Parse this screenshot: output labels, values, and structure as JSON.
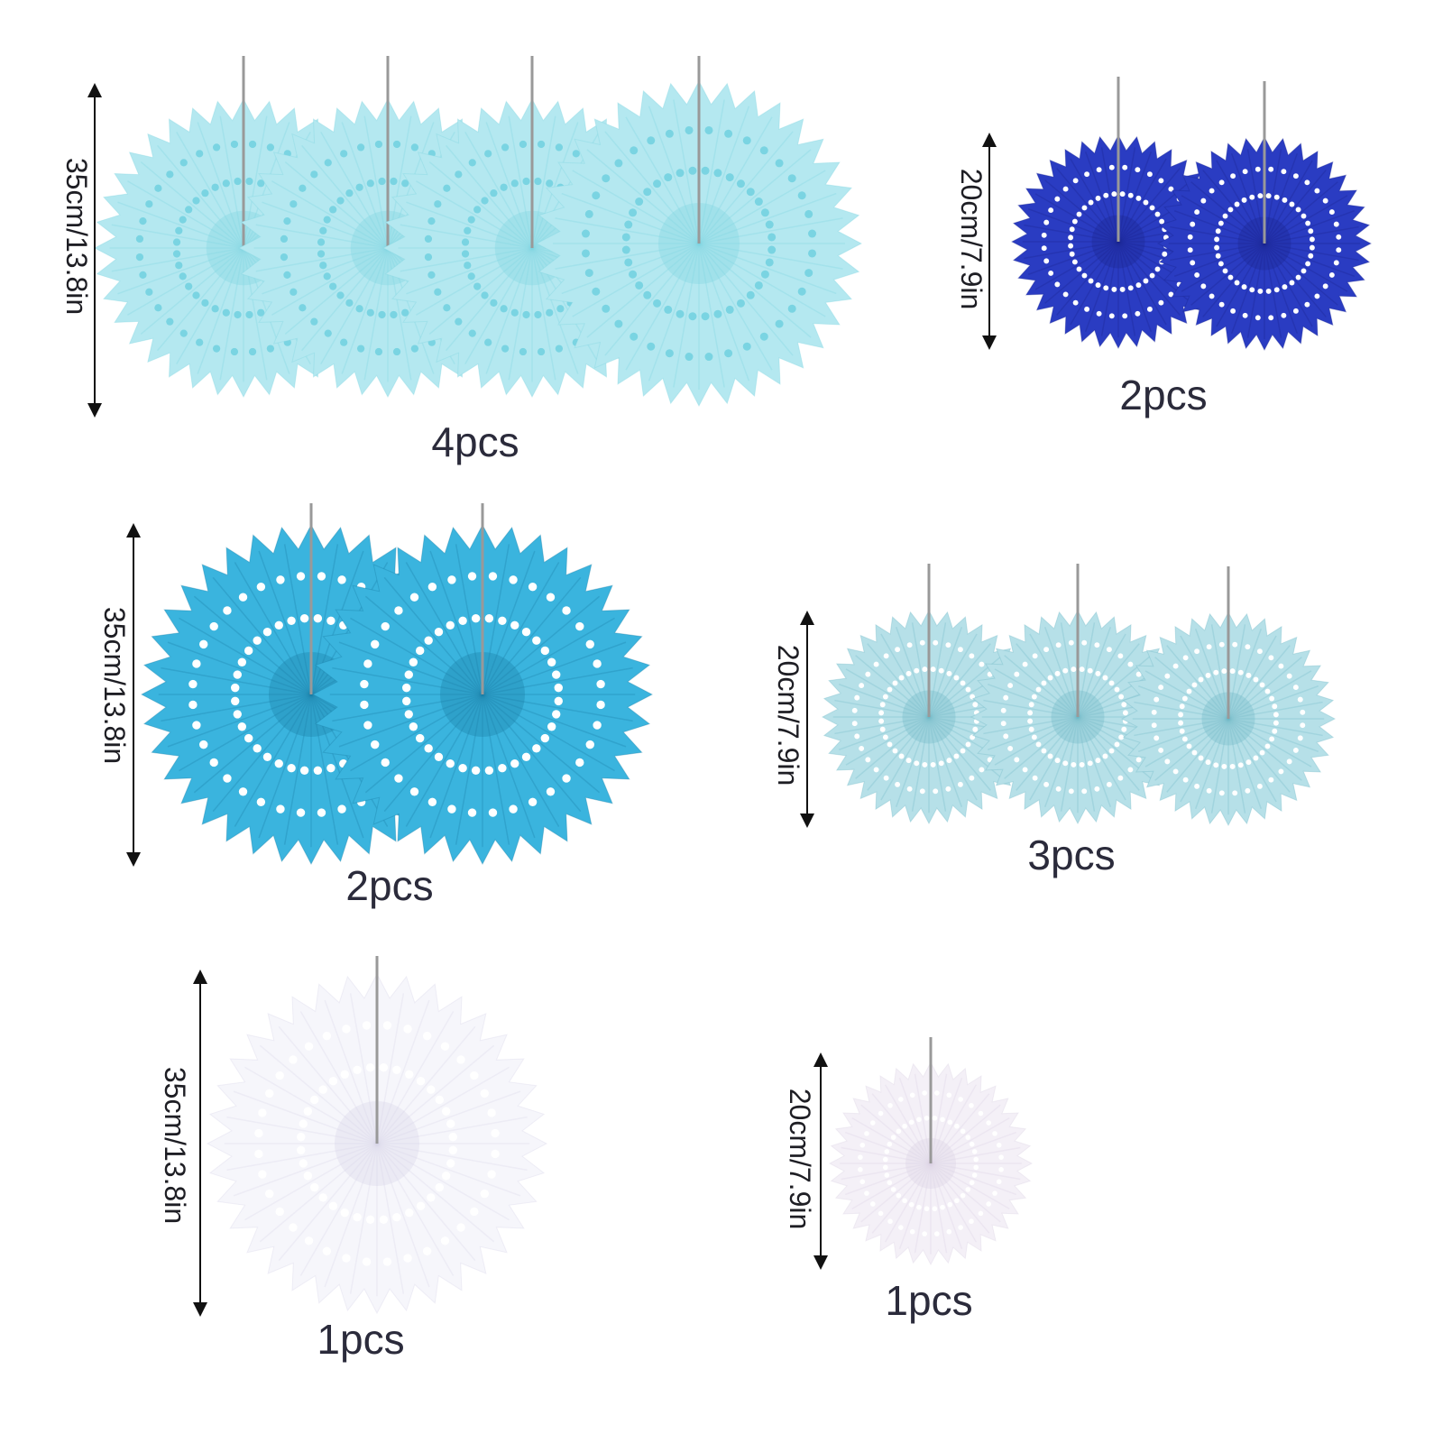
{
  "groups": [
    {
      "size": "35cm/13.8in",
      "count": "4pcs"
    },
    {
      "size": "20cm/7.9in",
      "count": "2pcs"
    },
    {
      "size": "35cm/13.8in",
      "count": "2pcs"
    },
    {
      "size": "20cm/7.9in",
      "count": "3pcs"
    },
    {
      "size": "35cm/13.8in",
      "count": "1pcs"
    },
    {
      "size": "20cm/7.9in",
      "count": "1pcs"
    }
  ]
}
